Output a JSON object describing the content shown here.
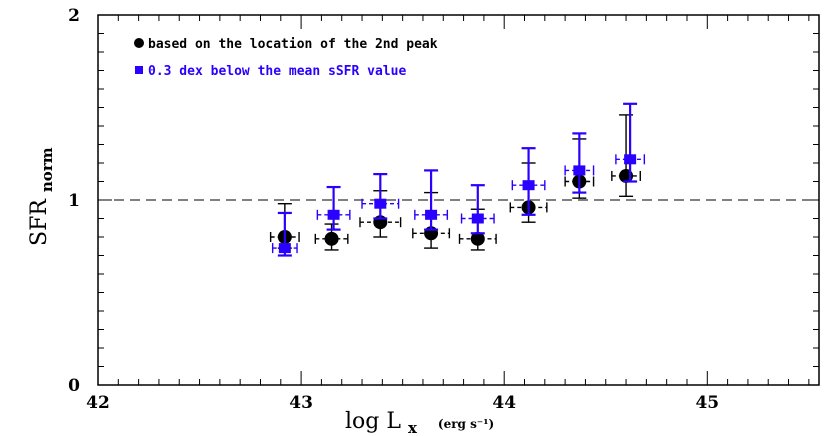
{
  "chart_data": {
    "type": "scatter",
    "xlabel": {
      "main": "log L",
      "sub": "x",
      "unit": "(erg s⁻¹)"
    },
    "ylabel": {
      "main": "SFR",
      "sub": "norm"
    },
    "xlim": [
      42,
      45.55
    ],
    "ylim": [
      0,
      2
    ],
    "x_ticks": [
      "42",
      "43",
      "44",
      "45"
    ],
    "y_ticks": [
      "0",
      "1",
      "2"
    ],
    "reference_line": {
      "y": 1,
      "style": "dashed"
    },
    "series": [
      {
        "name": "based on the location of the 2nd peak",
        "color": "#000000",
        "marker": "circle",
        "points": [
          {
            "x": 42.92,
            "y": 0.8,
            "xerr": 0.07,
            "ylo": 0.74,
            "yhi": 0.98
          },
          {
            "x": 43.15,
            "y": 0.79,
            "xerr": 0.08,
            "ylo": 0.73,
            "yhi": 0.87
          },
          {
            "x": 43.39,
            "y": 0.88,
            "xerr": 0.1,
            "ylo": 0.8,
            "yhi": 1.05
          },
          {
            "x": 43.64,
            "y": 0.82,
            "xerr": 0.09,
            "ylo": 0.74,
            "yhi": 1.04
          },
          {
            "x": 43.87,
            "y": 0.79,
            "xerr": 0.09,
            "ylo": 0.73,
            "yhi": 0.95
          },
          {
            "x": 44.12,
            "y": 0.96,
            "xerr": 0.09,
            "ylo": 0.88,
            "yhi": 1.2
          },
          {
            "x": 44.37,
            "y": 1.1,
            "xerr": 0.07,
            "ylo": 1.01,
            "yhi": 1.33
          },
          {
            "x": 44.6,
            "y": 1.13,
            "xerr": 0.07,
            "ylo": 1.02,
            "yhi": 1.46
          }
        ]
      },
      {
        "name": "0.3 dex below the mean sSFR value",
        "color": "#2a00ff",
        "marker": "square",
        "points": [
          {
            "x": 42.92,
            "y": 0.74,
            "xerr": 0.06,
            "ylo": 0.7,
            "yhi": 0.93
          },
          {
            "x": 43.16,
            "y": 0.92,
            "xerr": 0.08,
            "ylo": 0.84,
            "yhi": 1.07
          },
          {
            "x": 43.39,
            "y": 0.98,
            "xerr": 0.09,
            "ylo": 0.9,
            "yhi": 1.14
          },
          {
            "x": 43.64,
            "y": 0.92,
            "xerr": 0.08,
            "ylo": 0.84,
            "yhi": 1.16
          },
          {
            "x": 43.87,
            "y": 0.9,
            "xerr": 0.08,
            "ylo": 0.82,
            "yhi": 1.08
          },
          {
            "x": 44.12,
            "y": 1.08,
            "xerr": 0.08,
            "ylo": 0.92,
            "yhi": 1.28
          },
          {
            "x": 44.37,
            "y": 1.16,
            "xerr": 0.07,
            "ylo": 1.04,
            "yhi": 1.36
          },
          {
            "x": 44.62,
            "y": 1.22,
            "xerr": 0.07,
            "ylo": 1.1,
            "yhi": 1.52
          }
        ]
      }
    ],
    "legend_position": "top-left"
  }
}
